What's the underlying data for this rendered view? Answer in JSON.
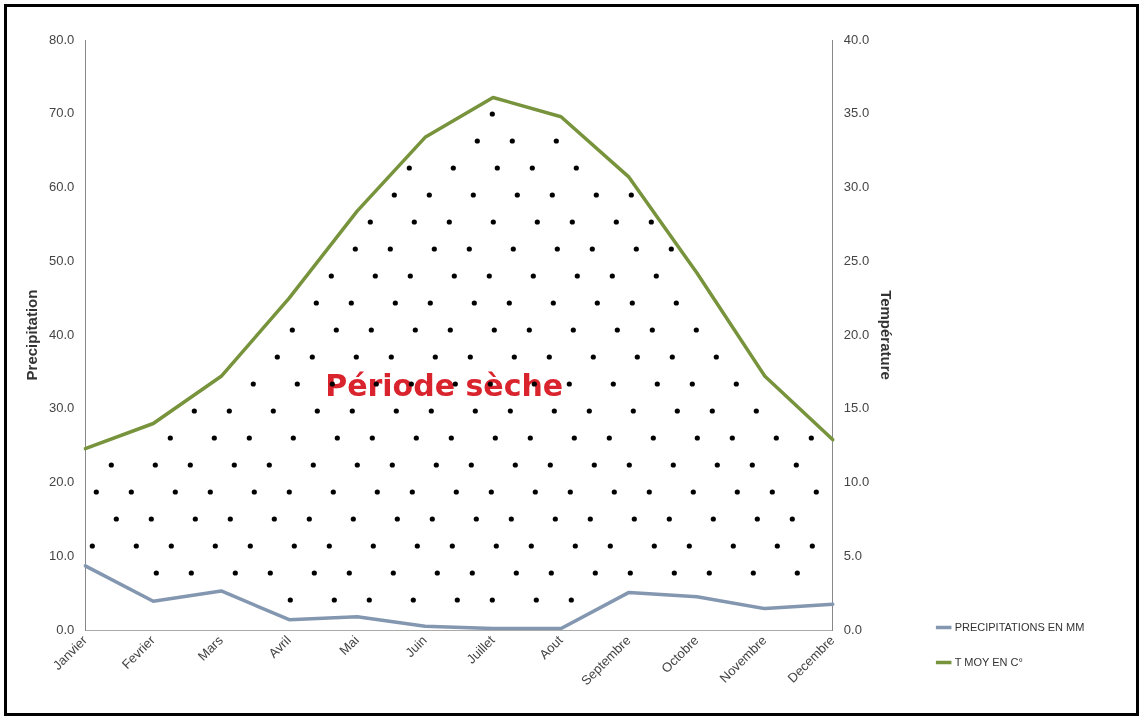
{
  "chart_data": {
    "type": "line",
    "categories": [
      "Janvier",
      "Fevrier",
      "Mars",
      "Avril",
      "Mai",
      "Juin",
      "Juillet",
      "Aout",
      "Septembre",
      "Octobre",
      "Novembre",
      "Decembre"
    ],
    "series": [
      {
        "name": "PRECIPITATIONS EN MM",
        "color": "#8497b0",
        "values": [
          8.7,
          3.9,
          5.3,
          1.4,
          1.8,
          0.5,
          0.2,
          0.2,
          5.1,
          4.5,
          2.9,
          3.5
        ]
      },
      {
        "name": "T MOY EN C°",
        "color": "#77933c",
        "axis": "y2",
        "values": [
          12.3,
          14.0,
          17.2,
          22.5,
          28.4,
          33.4,
          36.1,
          34.8,
          30.7,
          24.2,
          17.2,
          12.9
        ]
      }
    ],
    "ylabel": "Precipitation",
    "y2label": "Température",
    "ylim": [
      0,
      80
    ],
    "yticks": [
      {
        "value": 0,
        "label": "0.0"
      },
      {
        "value": 10,
        "label": "10.0"
      },
      {
        "value": 20,
        "label": "20.0"
      },
      {
        "value": 30,
        "label": "30.0"
      },
      {
        "value": 40,
        "label": "40.0"
      },
      {
        "value": 50,
        "label": "50.0"
      },
      {
        "value": 60,
        "label": "60.0"
      },
      {
        "value": 70,
        "label": "70.0"
      },
      {
        "value": 80,
        "label": "80.0"
      }
    ],
    "y2lim": [
      0,
      40
    ],
    "y2ticks": [
      {
        "value": 0,
        "label": "0.0"
      },
      {
        "value": 5,
        "label": "5.0"
      },
      {
        "value": 10,
        "label": "10.0"
      },
      {
        "value": 15,
        "label": "15.0"
      },
      {
        "value": 20,
        "label": "20.0"
      },
      {
        "value": 25,
        "label": "25.0"
      },
      {
        "value": 30,
        "label": "30.0"
      },
      {
        "value": 35,
        "label": "35.0"
      },
      {
        "value": 40,
        "label": "40.0"
      }
    ],
    "annotations": [
      "Période sèche"
    ],
    "grid": false,
    "legend": "bottom right",
    "marker": "none",
    "line_style": "solid"
  }
}
